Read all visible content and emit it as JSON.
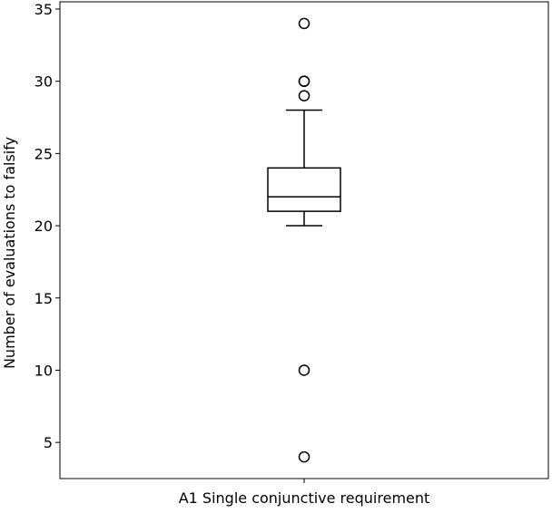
{
  "chart_data": {
    "type": "box",
    "title": "",
    "xlabel": "",
    "ylabel": "Number of evaluations to falsify",
    "categories": [
      "A1 Single conjunctive requirement"
    ],
    "ylim": [
      2.5,
      35.5
    ],
    "yticks": [
      5,
      10,
      15,
      20,
      25,
      30,
      35
    ],
    "grid": false,
    "boxes": [
      {
        "category": "A1 Single conjunctive requirement",
        "whisker_low": 20,
        "q1": 21,
        "median": 22,
        "q3": 24,
        "whisker_high": 28,
        "outliers": [
          34,
          30,
          30,
          29,
          10,
          4
        ]
      }
    ]
  }
}
